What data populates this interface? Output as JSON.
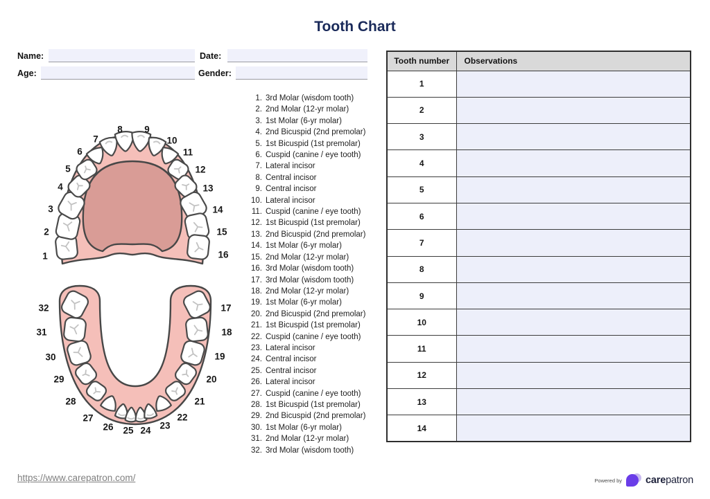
{
  "title": "Tooth Chart",
  "form": {
    "name_label": "Name:",
    "name_value": "",
    "date_label": "Date:",
    "date_value": "",
    "age_label": "Age:",
    "age_value": "",
    "gender_label": "Gender:",
    "gender_value": ""
  },
  "teeth": {
    "upper_numbers": [
      "1",
      "2",
      "3",
      "4",
      "5",
      "6",
      "7",
      "8",
      "9",
      "10",
      "11",
      "12",
      "13",
      "14",
      "15",
      "16"
    ],
    "lower_numbers": [
      "32",
      "31",
      "30",
      "29",
      "28",
      "27",
      "26",
      "25",
      "24",
      "23",
      "22",
      "21",
      "20",
      "19",
      "18",
      "17"
    ],
    "legend": [
      {
        "num": "1.",
        "name": "3rd Molar (wisdom tooth)"
      },
      {
        "num": "2.",
        "name": "2nd Molar (12-yr molar)"
      },
      {
        "num": "3.",
        "name": "1st Molar (6-yr molar)"
      },
      {
        "num": "4.",
        "name": "2nd Bicuspid (2nd premolar)"
      },
      {
        "num": "5.",
        "name": "1st Bicuspid (1st premolar)"
      },
      {
        "num": "6.",
        "name": "Cuspid (canine / eye tooth)"
      },
      {
        "num": "7.",
        "name": "Lateral incisor"
      },
      {
        "num": "8.",
        "name": "Central incisor"
      },
      {
        "num": "9.",
        "name": "Central incisor"
      },
      {
        "num": "10.",
        "name": "Lateral incisor"
      },
      {
        "num": "11.",
        "name": "Cuspid (canine / eye tooth)"
      },
      {
        "num": "12.",
        "name": "1st Bicuspid (1st premolar)"
      },
      {
        "num": "13.",
        "name": "2nd Bicuspid (2nd premolar)"
      },
      {
        "num": "14.",
        "name": "1st Molar (6-yr molar)"
      },
      {
        "num": "15.",
        "name": "2nd Molar (12-yr molar)"
      },
      {
        "num": "16.",
        "name": "3rd Molar (wisdom tooth)"
      },
      {
        "num": "17.",
        "name": "3rd Molar (wisdom tooth)"
      },
      {
        "num": "18.",
        "name": "2nd Molar (12-yr molar)"
      },
      {
        "num": "19.",
        "name": "1st Molar (6-yr molar)"
      },
      {
        "num": "20.",
        "name": "2nd Bicuspid (2nd premolar)"
      },
      {
        "num": "21.",
        "name": "1st Bicuspid (1st premolar)"
      },
      {
        "num": "22.",
        "name": "Cuspid (canine / eye tooth)"
      },
      {
        "num": "23.",
        "name": "Lateral incisor"
      },
      {
        "num": "24.",
        "name": "Central incisor"
      },
      {
        "num": "25.",
        "name": "Central incisor"
      },
      {
        "num": "26.",
        "name": "Lateral incisor"
      },
      {
        "num": "27.",
        "name": "Cuspid (canine / eye tooth)"
      },
      {
        "num": "28.",
        "name": "1st Bicuspid (1st premolar)"
      },
      {
        "num": "29.",
        "name": "2nd Bicuspid (2nd premolar)"
      },
      {
        "num": "30.",
        "name": "1st Molar (6-yr molar)"
      },
      {
        "num": "31.",
        "name": "2nd Molar (12-yr molar)"
      },
      {
        "num": "32.",
        "name": "3rd Molar (wisdom tooth)"
      }
    ]
  },
  "table": {
    "headers": [
      "Tooth number",
      "Observations"
    ],
    "rows": [
      {
        "tooth": "1",
        "observation": ""
      },
      {
        "tooth": "2",
        "observation": ""
      },
      {
        "tooth": "3",
        "observation": ""
      },
      {
        "tooth": "4",
        "observation": ""
      },
      {
        "tooth": "5",
        "observation": ""
      },
      {
        "tooth": "6",
        "observation": ""
      },
      {
        "tooth": "7",
        "observation": ""
      },
      {
        "tooth": "8",
        "observation": ""
      },
      {
        "tooth": "9",
        "observation": ""
      },
      {
        "tooth": "10",
        "observation": ""
      },
      {
        "tooth": "11",
        "observation": ""
      },
      {
        "tooth": "12",
        "observation": ""
      },
      {
        "tooth": "13",
        "observation": ""
      },
      {
        "tooth": "14",
        "observation": ""
      }
    ]
  },
  "footer": {
    "link": "https://www.carepatron.com/",
    "powered_by": "Powered by",
    "brand_bold": "care",
    "brand_regular": "patron"
  },
  "colors": {
    "title_navy": "#1a2a5a",
    "gum_pink": "#f5bfb9",
    "palate_pink": "#d99c96",
    "outline": "#474747",
    "field_bg": "#f0f1fb",
    "table_header_bg": "#d9d9d9",
    "observation_bg": "#edeffa",
    "brand_purple": "#6a3de8",
    "brand_lavender": "#c9baf0"
  }
}
